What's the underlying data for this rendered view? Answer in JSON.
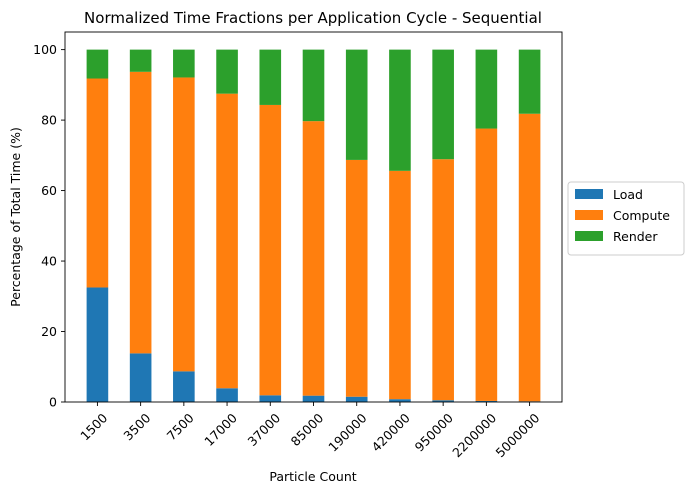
{
  "chart_data": {
    "type": "bar",
    "stacked": true,
    "title": "Normalized Time Fractions per Application Cycle - Sequential",
    "xlabel": "Particle Count",
    "ylabel": "Percentage of Total Time (%)",
    "ylim": [
      0,
      105
    ],
    "yticks": [
      "0",
      "20",
      "40",
      "60",
      "80",
      "100"
    ],
    "categories": [
      "1500",
      "3500",
      "7500",
      "17000",
      "37000",
      "85000",
      "190000",
      "420000",
      "950000",
      "2200000",
      "5000000"
    ],
    "series": [
      {
        "name": "Load",
        "color": "#1f77b4",
        "values": [
          32.5,
          13.8,
          8.7,
          3.9,
          1.9,
          1.8,
          1.5,
          0.8,
          0.5,
          0.3,
          0.2
        ]
      },
      {
        "name": "Compute",
        "color": "#ff7f0e",
        "values": [
          59.3,
          79.9,
          83.4,
          83.6,
          82.4,
          77.9,
          67.2,
          64.8,
          68.4,
          77.3,
          81.6
        ]
      },
      {
        "name": "Render",
        "color": "#2ca02c",
        "values": [
          8.2,
          6.3,
          7.9,
          12.5,
          15.7,
          20.3,
          31.3,
          34.4,
          31.1,
          22.4,
          18.2
        ]
      }
    ],
    "legend_position": "right",
    "grid": false
  }
}
